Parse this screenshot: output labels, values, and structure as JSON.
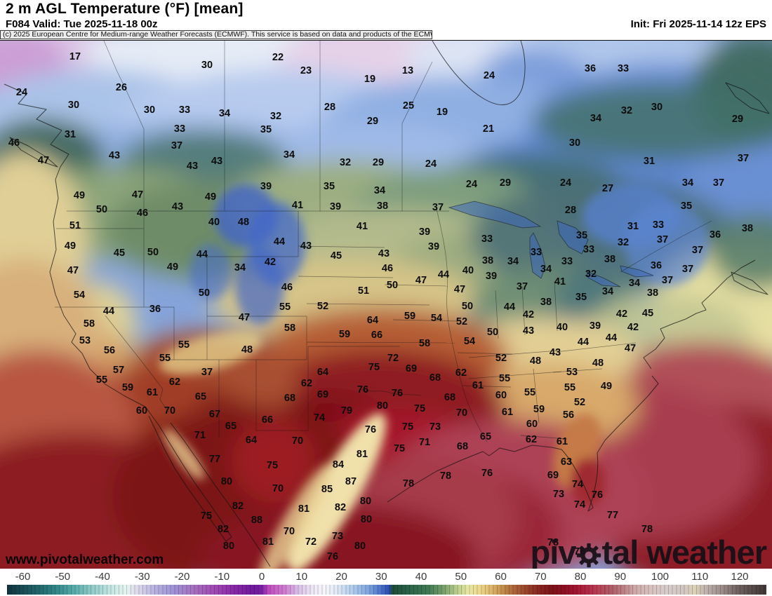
{
  "header": {
    "title": "2 m AGL Temperature (°F) [mean]",
    "valid_line": "F084 Valid: Tue 2025-11-18 00z",
    "init_line": "Init: Fri 2025-11-14 12z EPS",
    "copyright": "(c) 2025 European Centre for Medium-range Weather Forecasts (ECMWF). This service is based on data and products of the ECMWF."
  },
  "watermarks": {
    "site_url": "www.pivotalweather.com",
    "brand_prefix": "piv",
    "brand_suffix": "tal weather",
    "brand_full": "pivotal weather"
  },
  "chart_data": {
    "type": "heatmap",
    "title": "2 m AGL Temperature (°F) [mean]",
    "units": "°F",
    "model": "ECMWF EPS",
    "forecast_hour": "F084",
    "valid_time": "Tue 2025-11-18 00z",
    "init_time": "Fri 2025-11-14 12z",
    "colorbar_ticks": [
      -60,
      -50,
      -40,
      -30,
      -20,
      -10,
      0,
      10,
      20,
      30,
      40,
      50,
      60,
      70,
      80,
      90,
      100,
      110,
      120
    ],
    "colorbar_range": [
      -64,
      127
    ],
    "colorbar_stops": [
      [
        -64,
        "#10323c"
      ],
      [
        -57,
        "#1f6066"
      ],
      [
        -52,
        "#2f8486"
      ],
      [
        -47,
        "#5aacac"
      ],
      [
        -43,
        "#8cc8c6"
      ],
      [
        -38,
        "#c2e6e2"
      ],
      [
        -34,
        "#e6f4f0"
      ],
      [
        -31,
        "#dcd8ec"
      ],
      [
        -27,
        "#b8b4e0"
      ],
      [
        -22,
        "#9e92d6"
      ],
      [
        -17,
        "#a670c0"
      ],
      [
        -12,
        "#a04ab4"
      ],
      [
        -7,
        "#8a28a8"
      ],
      [
        -2,
        "#6f1b9c"
      ],
      [
        0,
        "#7a1fa6"
      ],
      [
        2,
        "#c14ec0"
      ],
      [
        6,
        "#d07ed0"
      ],
      [
        9,
        "#d8bce6"
      ],
      [
        13,
        "#eee8f6"
      ],
      [
        16,
        "#f6f6fa"
      ],
      [
        19,
        "#dfe9f6"
      ],
      [
        23,
        "#b0ccec"
      ],
      [
        27,
        "#7da4dc"
      ],
      [
        30,
        "#4a72c8"
      ],
      [
        32,
        "#2b4eb2"
      ],
      [
        33,
        "#1d4c38"
      ],
      [
        37,
        "#2a6248"
      ],
      [
        42,
        "#417a54"
      ],
      [
        46,
        "#7aa26c"
      ],
      [
        49,
        "#b8cc8c"
      ],
      [
        52,
        "#e6e8a4"
      ],
      [
        55,
        "#ecd88c"
      ],
      [
        58,
        "#dcb468"
      ],
      [
        61,
        "#c08848"
      ],
      [
        64,
        "#a86038"
      ],
      [
        67,
        "#97402a"
      ],
      [
        70,
        "#872420"
      ],
      [
        73,
        "#7c1418"
      ],
      [
        76,
        "#8c1022"
      ],
      [
        79,
        "#a01430"
      ],
      [
        82,
        "#b22846"
      ],
      [
        85,
        "#b84458"
      ],
      [
        88,
        "#b05c68"
      ],
      [
        91,
        "#bc8084"
      ],
      [
        94,
        "#cfaaaa"
      ],
      [
        98,
        "#d8c2c0"
      ],
      [
        102,
        "#d8cccb"
      ],
      [
        106,
        "#d2c6c2"
      ],
      [
        109,
        "#dcd2b8"
      ],
      [
        112,
        "#beb0ac"
      ],
      [
        116,
        "#9a8a88"
      ],
      [
        120,
        "#6e605e"
      ],
      [
        127,
        "#3e3634"
      ]
    ],
    "point_values": [
      [
        17,
        107,
        80
      ],
      [
        30,
        295,
        92
      ],
      [
        22,
        396,
        81
      ],
      [
        23,
        436,
        100
      ],
      [
        13,
        581,
        100
      ],
      [
        19,
        527,
        112
      ],
      [
        24,
        697,
        107
      ],
      [
        36,
        841,
        97
      ],
      [
        33,
        888,
        97
      ],
      [
        24,
        31,
        131
      ],
      [
        26,
        173,
        124
      ],
      [
        30,
        105,
        149
      ],
      [
        30,
        213,
        156
      ],
      [
        33,
        263,
        156
      ],
      [
        34,
        320,
        161
      ],
      [
        28,
        470,
        152
      ],
      [
        25,
        582,
        150
      ],
      [
        19,
        630,
        159
      ],
      [
        32,
        393,
        165
      ],
      [
        29,
        531,
        172
      ],
      [
        35,
        379,
        184
      ],
      [
        21,
        696,
        183
      ],
      [
        30,
        936,
        152
      ],
      [
        32,
        893,
        157
      ],
      [
        34,
        849,
        168
      ],
      [
        29,
        1051,
        169
      ],
      [
        31,
        100,
        191
      ],
      [
        33,
        256,
        183
      ],
      [
        37,
        252,
        207
      ],
      [
        46,
        20,
        203
      ],
      [
        47,
        62,
        228
      ],
      [
        43,
        163,
        221
      ],
      [
        43,
        274,
        236
      ],
      [
        43,
        309,
        229
      ],
      [
        34,
        412,
        220
      ],
      [
        32,
        492,
        231
      ],
      [
        29,
        539,
        231
      ],
      [
        24,
        614,
        233
      ],
      [
        30,
        819,
        203
      ],
      [
        31,
        925,
        229
      ],
      [
        37,
        1059,
        225
      ],
      [
        49,
        113,
        278
      ],
      [
        47,
        196,
        277
      ],
      [
        43,
        253,
        294
      ],
      [
        49,
        300,
        280
      ],
      [
        50,
        145,
        298
      ],
      [
        46,
        203,
        303
      ],
      [
        40,
        305,
        316
      ],
      [
        48,
        347,
        316
      ],
      [
        51,
        107,
        321
      ],
      [
        39,
        379,
        265
      ],
      [
        35,
        469,
        265
      ],
      [
        34,
        541,
        271
      ],
      [
        24,
        672,
        262
      ],
      [
        29,
        720,
        260
      ],
      [
        41,
        424,
        292
      ],
      [
        39,
        478,
        294
      ],
      [
        38,
        545,
        293
      ],
      [
        37,
        624,
        295
      ],
      [
        24,
        806,
        260
      ],
      [
        27,
        866,
        268
      ],
      [
        34,
        980,
        260
      ],
      [
        37,
        1024,
        260
      ],
      [
        28,
        813,
        299
      ],
      [
        35,
        978,
        293
      ],
      [
        49,
        100,
        350
      ],
      [
        45,
        170,
        360
      ],
      [
        50,
        218,
        359
      ],
      [
        44,
        288,
        362
      ],
      [
        41,
        516,
        322
      ],
      [
        39,
        605,
        330
      ],
      [
        44,
        398,
        344
      ],
      [
        43,
        436,
        350
      ],
      [
        39,
        618,
        351
      ],
      [
        33,
        694,
        340
      ],
      [
        31,
        902,
        322
      ],
      [
        33,
        938,
        320
      ],
      [
        37,
        944,
        341
      ],
      [
        36,
        1019,
        334
      ],
      [
        38,
        1065,
        325
      ],
      [
        35,
        829,
        335
      ],
      [
        32,
        888,
        345
      ],
      [
        33,
        839,
        355
      ],
      [
        37,
        994,
        356
      ],
      [
        33,
        764,
        359
      ],
      [
        49,
        246,
        380
      ],
      [
        34,
        342,
        381
      ],
      [
        47,
        104,
        385
      ],
      [
        45,
        479,
        364
      ],
      [
        42,
        385,
        373
      ],
      [
        43,
        547,
        361
      ],
      [
        46,
        552,
        382
      ],
      [
        38,
        695,
        371
      ],
      [
        34,
        731,
        372
      ],
      [
        40,
        667,
        385
      ],
      [
        39,
        700,
        393
      ],
      [
        44,
        632,
        391
      ],
      [
        47,
        600,
        399
      ],
      [
        38,
        869,
        369
      ],
      [
        33,
        808,
        372
      ],
      [
        36,
        935,
        378
      ],
      [
        34,
        778,
        383
      ],
      [
        37,
        980,
        383
      ],
      [
        32,
        842,
        390
      ],
      [
        41,
        798,
        401
      ],
      [
        37,
        744,
        408
      ],
      [
        34,
        904,
        403
      ],
      [
        37,
        951,
        399
      ],
      [
        54,
        113,
        420
      ],
      [
        50,
        291,
        417
      ],
      [
        46,
        409,
        409
      ],
      [
        50,
        559,
        406
      ],
      [
        51,
        518,
        414
      ],
      [
        47,
        655,
        412
      ],
      [
        34,
        866,
        415
      ],
      [
        35,
        828,
        423
      ],
      [
        38,
        778,
        430
      ],
      [
        38,
        930,
        417
      ],
      [
        44,
        155,
        443
      ],
      [
        36,
        221,
        440
      ],
      [
        47,
        348,
        452
      ],
      [
        55,
        406,
        437
      ],
      [
        52,
        460,
        436
      ],
      [
        50,
        666,
        436
      ],
      [
        44,
        726,
        437
      ],
      [
        42,
        753,
        448
      ],
      [
        42,
        886,
        447
      ],
      [
        45,
        923,
        446
      ],
      [
        58,
        127,
        461
      ],
      [
        53,
        121,
        485
      ],
      [
        56,
        156,
        499
      ],
      [
        55,
        262,
        491
      ],
      [
        48,
        352,
        498
      ],
      [
        59,
        584,
        450
      ],
      [
        54,
        622,
        453
      ],
      [
        58,
        413,
        467
      ],
      [
        64,
        531,
        456
      ],
      [
        52,
        658,
        458
      ],
      [
        50,
        702,
        473
      ],
      [
        59,
        491,
        476
      ],
      [
        66,
        537,
        477
      ],
      [
        54,
        669,
        486
      ],
      [
        58,
        605,
        489
      ],
      [
        40,
        801,
        466
      ],
      [
        39,
        848,
        464
      ],
      [
        42,
        902,
        466
      ],
      [
        43,
        753,
        471
      ],
      [
        44,
        871,
        481
      ],
      [
        44,
        831,
        487
      ],
      [
        47,
        898,
        496
      ],
      [
        55,
        235,
        510
      ],
      [
        57,
        169,
        527
      ],
      [
        37,
        295,
        530
      ],
      [
        55,
        145,
        541
      ],
      [
        62,
        249,
        544
      ],
      [
        52,
        714,
        510
      ],
      [
        72,
        560,
        510
      ],
      [
        75,
        533,
        523
      ],
      [
        69,
        586,
        525
      ],
      [
        64,
        460,
        530
      ],
      [
        62,
        657,
        531
      ],
      [
        68,
        620,
        538
      ],
      [
        55,
        719,
        539
      ],
      [
        43,
        791,
        502
      ],
      [
        48,
        763,
        514
      ],
      [
        48,
        852,
        517
      ],
      [
        53,
        815,
        530
      ],
      [
        59,
        182,
        552
      ],
      [
        61,
        217,
        559
      ],
      [
        65,
        286,
        565
      ],
      [
        62,
        437,
        546
      ],
      [
        61,
        681,
        549
      ],
      [
        76,
        517,
        555
      ],
      [
        76,
        566,
        560
      ],
      [
        60,
        714,
        563
      ],
      [
        69,
        460,
        562
      ],
      [
        68,
        413,
        567
      ],
      [
        68,
        641,
        566
      ],
      [
        55,
        812,
        552
      ],
      [
        49,
        864,
        550
      ],
      [
        55,
        755,
        559
      ],
      [
        60,
        202,
        585
      ],
      [
        70,
        242,
        585
      ],
      [
        67,
        306,
        590
      ],
      [
        65,
        329,
        607
      ],
      [
        80,
        545,
        578
      ],
      [
        61,
        723,
        587
      ],
      [
        75,
        598,
        582
      ],
      [
        70,
        658,
        588
      ],
      [
        79,
        494,
        585
      ],
      [
        74,
        455,
        595
      ],
      [
        66,
        381,
        598
      ],
      [
        52,
        826,
        573
      ],
      [
        59,
        768,
        583
      ],
      [
        56,
        810,
        591
      ],
      [
        60,
        758,
        604
      ],
      [
        76,
        528,
        612
      ],
      [
        75,
        581,
        608
      ],
      [
        73,
        620,
        608
      ],
      [
        71,
        285,
        620
      ],
      [
        64,
        358,
        627
      ],
      [
        70,
        424,
        628
      ],
      [
        71,
        605,
        630
      ],
      [
        65,
        692,
        622
      ],
      [
        68,
        659,
        636
      ],
      [
        62,
        757,
        626
      ],
      [
        61,
        801,
        629
      ],
      [
        75,
        569,
        639
      ],
      [
        77,
        306,
        654
      ],
      [
        81,
        516,
        647
      ],
      [
        84,
        482,
        662
      ],
      [
        75,
        388,
        663
      ],
      [
        63,
        807,
        658
      ],
      [
        87,
        500,
        686
      ],
      [
        80,
        323,
        686
      ],
      [
        78,
        582,
        689
      ],
      [
        70,
        396,
        696
      ],
      [
        85,
        466,
        697
      ],
      [
        78,
        635,
        678
      ],
      [
        76,
        694,
        674
      ],
      [
        69,
        788,
        677
      ],
      [
        74,
        823,
        690
      ],
      [
        80,
        521,
        714
      ],
      [
        82,
        339,
        721
      ],
      [
        81,
        433,
        725
      ],
      [
        82,
        485,
        723
      ],
      [
        73,
        796,
        704
      ],
      [
        74,
        826,
        719
      ],
      [
        76,
        851,
        705
      ],
      [
        80,
        522,
        740
      ],
      [
        88,
        366,
        741
      ],
      [
        75,
        294,
        735
      ],
      [
        77,
        873,
        734
      ],
      [
        82,
        318,
        754
      ],
      [
        70,
        412,
        757
      ],
      [
        73,
        481,
        764
      ],
      [
        78,
        922,
        754
      ],
      [
        80,
        326,
        778
      ],
      [
        81,
        382,
        772
      ],
      [
        80,
        513,
        778
      ],
      [
        72,
        443,
        772
      ],
      [
        78,
        788,
        773
      ],
      [
        76,
        474,
        793
      ],
      [
        76,
        826,
        786
      ]
    ]
  }
}
